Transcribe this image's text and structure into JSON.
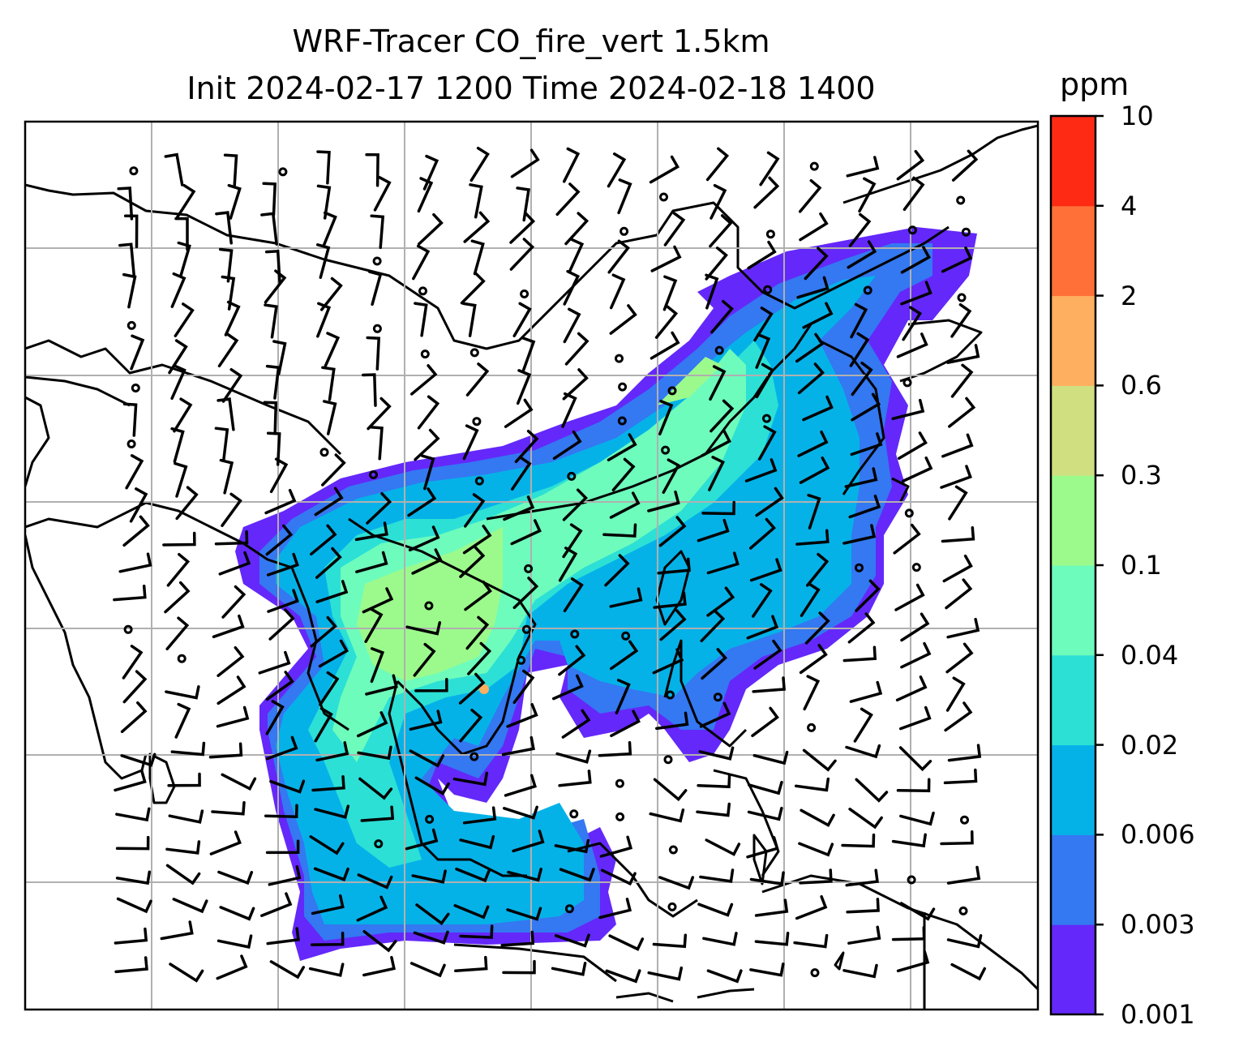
{
  "title": {
    "line1": "WRF-Tracer CO_fire_vert 1.5km",
    "line2": "Init 2024-02-17 1200 Time 2024-02-18 1400"
  },
  "colorbar": {
    "unit": "ppm",
    "levels": [
      "0.001",
      "0.003",
      "0.006",
      "0.02",
      "0.04",
      "0.1",
      "0.3",
      "0.6",
      "2",
      "4",
      "10"
    ],
    "colors": [
      "#6428fa",
      "#3478f2",
      "#05b2e8",
      "#2ce0d6",
      "#6efcbc",
      "#9cfa8c",
      "#d0e080",
      "#ffaf60",
      "#ff7038",
      "#ff2a14"
    ]
  },
  "map": {
    "field": "CO_fire_vert",
    "level": "1.5km",
    "overlays": [
      "coastlines",
      "country-borders",
      "lat-lon-gridlines",
      "wind-barbs"
    ],
    "grid_color": "#b0b0b0"
  }
}
